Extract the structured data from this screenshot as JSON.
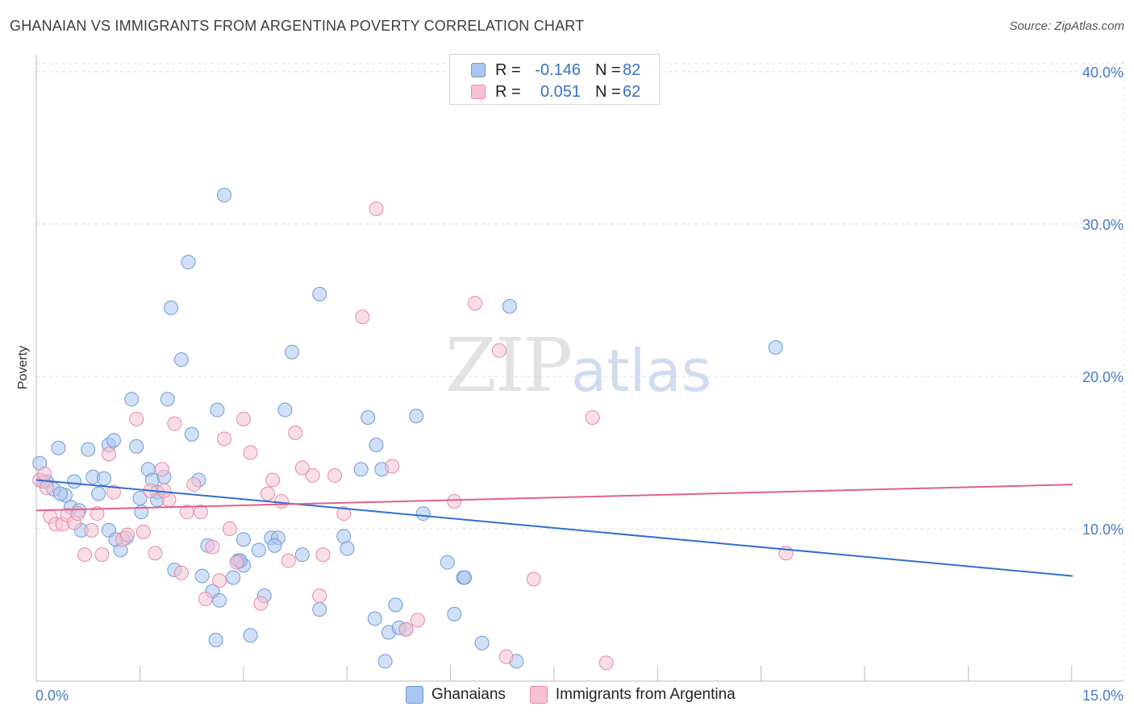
{
  "header": {
    "title": "GHANAIAN VS IMMIGRANTS FROM ARGENTINA POVERTY CORRELATION CHART",
    "source": "Source: ZipAtlas.com"
  },
  "watermark": {
    "zip": "ZIP",
    "atlas": "atlas"
  },
  "legend": {
    "rows": [
      {
        "r_label": "R =",
        "r_value": "-0.146",
        "n_label": "N =",
        "n_value": "82",
        "color": "#a9c6ee",
        "border": "#6f9ad8"
      },
      {
        "r_label": "R =",
        "r_value": "0.051",
        "n_label": "N =",
        "n_value": "62",
        "color": "#f6c2d3",
        "border": "#e48aa7"
      }
    ]
  },
  "bottom_legend": {
    "items": [
      {
        "label": "Ghanaians",
        "color": "#a9c6ee",
        "border": "#6f9ad8"
      },
      {
        "label": "Immigrants from Argentina",
        "color": "#f6c2d3",
        "border": "#e48aa7"
      }
    ]
  },
  "chart_data": {
    "type": "scatter",
    "title": "GHANAIAN VS IMMIGRANTS FROM ARGENTINA POVERTY CORRELATION CHART",
    "xlabel": "",
    "ylabel": "Poverty",
    "xlim": [
      0,
      15
    ],
    "ylim": [
      0,
      41
    ],
    "x_tick_labels": [
      "0.0%",
      "15.0%"
    ],
    "y_ticks": [
      10,
      20,
      30,
      40
    ],
    "y_tick_labels": [
      "10.0%",
      "20.0%",
      "30.0%",
      "40.0%"
    ],
    "grid": true,
    "series": [
      {
        "name": "Ghanaians",
        "color": "#6f9ad8",
        "fill": "#a9c6ee",
        "line_color": "#2f6fd0",
        "trend": {
          "x": [
            0,
            15
          ],
          "y": [
            13.2,
            6.9
          ]
        },
        "points": [
          [
            0.05,
            14.3
          ],
          [
            0.15,
            13.1
          ],
          [
            0.25,
            12.6
          ],
          [
            0.32,
            15.3
          ],
          [
            0.42,
            12.2
          ],
          [
            0.5,
            11.4
          ],
          [
            0.55,
            13.1
          ],
          [
            0.62,
            11.2
          ],
          [
            0.75,
            15.2
          ],
          [
            0.82,
            13.4
          ],
          [
            0.9,
            12.3
          ],
          [
            0.98,
            13.3
          ],
          [
            1.05,
            15.5
          ],
          [
            1.12,
            15.8
          ],
          [
            1.22,
            8.6
          ],
          [
            1.3,
            9.4
          ],
          [
            1.38,
            18.5
          ],
          [
            1.45,
            15.4
          ],
          [
            1.52,
            11.1
          ],
          [
            1.62,
            13.9
          ],
          [
            1.68,
            13.2
          ],
          [
            1.75,
            12.4
          ],
          [
            1.85,
            13.4
          ],
          [
            1.9,
            18.5
          ],
          [
            1.95,
            24.5
          ],
          [
            2.0,
            7.3
          ],
          [
            2.1,
            21.1
          ],
          [
            2.2,
            27.5
          ],
          [
            2.25,
            16.2
          ],
          [
            2.35,
            13.2
          ],
          [
            2.4,
            6.9
          ],
          [
            2.48,
            8.9
          ],
          [
            2.55,
            5.9
          ],
          [
            2.62,
            17.8
          ],
          [
            2.65,
            5.3
          ],
          [
            2.72,
            31.9
          ],
          [
            2.85,
            6.8
          ],
          [
            2.92,
            7.9
          ],
          [
            3.0,
            9.3
          ],
          [
            3.1,
            3.0
          ],
          [
            3.22,
            8.6
          ],
          [
            3.3,
            5.6
          ],
          [
            3.4,
            9.4
          ],
          [
            3.5,
            9.4
          ],
          [
            3.6,
            17.8
          ],
          [
            3.7,
            21.6
          ],
          [
            3.85,
            8.3
          ],
          [
            4.1,
            25.4
          ],
          [
            4.45,
            9.5
          ],
          [
            4.5,
            8.7
          ],
          [
            4.7,
            13.9
          ],
          [
            4.8,
            17.3
          ],
          [
            4.92,
            15.5
          ],
          [
            5.0,
            13.9
          ],
          [
            5.1,
            3.2
          ],
          [
            5.2,
            5.0
          ],
          [
            5.35,
            3.4
          ],
          [
            5.5,
            17.4
          ],
          [
            5.6,
            11.0
          ],
          [
            5.95,
            7.8
          ],
          [
            6.05,
            4.4
          ],
          [
            6.18,
            6.8
          ],
          [
            6.45,
            2.5
          ],
          [
            6.85,
            24.6
          ],
          [
            6.95,
            1.3
          ],
          [
            10.7,
            21.9
          ],
          [
            0.1,
            13.1
          ],
          [
            1.05,
            9.9
          ],
          [
            2.6,
            2.7
          ],
          [
            3.45,
            8.9
          ],
          [
            4.1,
            4.7
          ],
          [
            5.05,
            1.3
          ],
          [
            0.65,
            9.9
          ],
          [
            1.75,
            11.9
          ],
          [
            4.9,
            4.1
          ],
          [
            0.35,
            12.3
          ],
          [
            1.15,
            9.3
          ],
          [
            3.0,
            7.6
          ],
          [
            5.25,
            3.5
          ],
          [
            6.2,
            6.8
          ],
          [
            2.95,
            7.9
          ],
          [
            1.5,
            12.0
          ]
        ]
      },
      {
        "name": "Immigrants from Argentina",
        "color": "#e48aa7",
        "fill": "#f6c2d3",
        "line_color": "#e0608c",
        "trend": {
          "x": [
            0,
            15
          ],
          "y": [
            11.2,
            12.9
          ]
        },
        "points": [
          [
            0.05,
            13.2
          ],
          [
            0.12,
            13.6
          ],
          [
            0.2,
            10.8
          ],
          [
            0.28,
            10.3
          ],
          [
            0.38,
            10.3
          ],
          [
            0.45,
            10.9
          ],
          [
            0.55,
            10.4
          ],
          [
            0.6,
            11.0
          ],
          [
            0.7,
            8.3
          ],
          [
            0.8,
            9.9
          ],
          [
            0.88,
            11.0
          ],
          [
            0.95,
            8.3
          ],
          [
            1.05,
            14.9
          ],
          [
            1.12,
            12.4
          ],
          [
            1.25,
            9.3
          ],
          [
            1.32,
            9.6
          ],
          [
            1.45,
            17.2
          ],
          [
            1.55,
            9.8
          ],
          [
            1.65,
            12.5
          ],
          [
            1.72,
            8.4
          ],
          [
            1.82,
            13.9
          ],
          [
            1.92,
            11.9
          ],
          [
            2.0,
            16.9
          ],
          [
            2.1,
            7.1
          ],
          [
            2.18,
            11.1
          ],
          [
            2.28,
            12.9
          ],
          [
            2.38,
            11.1
          ],
          [
            2.45,
            5.4
          ],
          [
            2.55,
            8.8
          ],
          [
            2.65,
            6.6
          ],
          [
            2.72,
            15.9
          ],
          [
            2.8,
            10.0
          ],
          [
            2.9,
            7.8
          ],
          [
            3.0,
            17.2
          ],
          [
            3.1,
            15.0
          ],
          [
            3.25,
            5.1
          ],
          [
            3.35,
            12.3
          ],
          [
            3.42,
            13.2
          ],
          [
            3.55,
            11.8
          ],
          [
            3.65,
            7.9
          ],
          [
            3.75,
            16.3
          ],
          [
            3.85,
            14.0
          ],
          [
            4.0,
            13.5
          ],
          [
            4.15,
            8.3
          ],
          [
            4.32,
            13.5
          ],
          [
            4.45,
            11.0
          ],
          [
            4.72,
            23.9
          ],
          [
            4.92,
            31.0
          ],
          [
            5.15,
            14.1
          ],
          [
            5.35,
            3.4
          ],
          [
            5.52,
            4.0
          ],
          [
            6.05,
            11.8
          ],
          [
            6.35,
            24.8
          ],
          [
            6.7,
            21.7
          ],
          [
            7.2,
            6.7
          ],
          [
            8.05,
            17.3
          ],
          [
            8.25,
            1.2
          ],
          [
            10.85,
            8.4
          ],
          [
            0.15,
            12.7
          ],
          [
            1.85,
            12.5
          ],
          [
            4.1,
            5.6
          ],
          [
            6.8,
            1.6
          ]
        ]
      }
    ]
  }
}
